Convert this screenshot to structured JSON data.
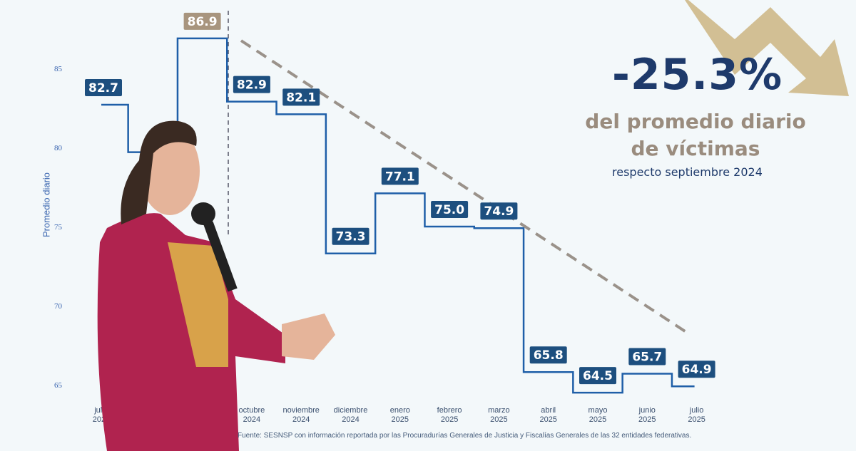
{
  "chart_data": {
    "type": "line",
    "step": true,
    "ylabel": "Promedio diario",
    "y_ticks": [
      85,
      80,
      75,
      70,
      65
    ],
    "ylim": [
      64,
      88
    ],
    "categories": [
      [
        "julio",
        "2024"
      ],
      [
        "",
        ""
      ],
      [
        "",
        ""
      ],
      [
        "octubre",
        "2024"
      ],
      [
        "noviembre",
        "2024"
      ],
      [
        "diciembre",
        "2024"
      ],
      [
        "enero",
        "2025"
      ],
      [
        "febrero",
        "2025"
      ],
      [
        "marzo",
        "2025"
      ],
      [
        "abril",
        "2025"
      ],
      [
        "mayo",
        "2025"
      ],
      [
        "junio",
        "2025"
      ],
      [
        "julio",
        "2025"
      ]
    ],
    "values": [
      82.7,
      79.7,
      86.9,
      82.9,
      82.1,
      73.3,
      77.1,
      75.0,
      74.9,
      65.8,
      64.5,
      65.7,
      64.9
    ],
    "data_labels": [
      "82.7",
      "",
      "86.9",
      "82.9",
      "82.1",
      "73.3",
      "77.1",
      "75.0",
      "74.9",
      "65.8",
      "64.5",
      "65.7",
      "64.9"
    ],
    "highlight_index": 2,
    "trendline": "dashed, decreasing from septiembre 2024 to julio 2025",
    "colors": {
      "line": "#1f5fa8",
      "label_bg": "#1d4f7f",
      "highlight_bg": "#a8957e",
      "trend": "#9a928a",
      "presenter_jacket": "#b0234f"
    }
  },
  "headline": {
    "value": "-25.3%",
    "line1": "del promedio diario",
    "line2": "de víctimas",
    "reference": "respecto septiembre 2024"
  },
  "source": "Fuente: SESNSP con información reportada por las Procuradurías Generales de Justicia y Fiscalías Generales de las 32 entidades federativas."
}
